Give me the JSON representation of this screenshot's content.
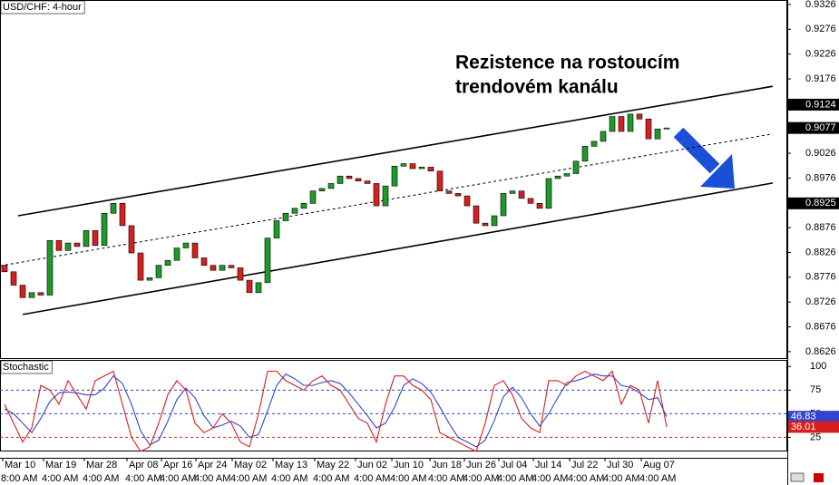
{
  "chart_data": [
    {
      "type": "candlestick",
      "title": "USD/CHF: 4-hour",
      "annotation": [
        "Rezistence na rostoucím",
        "trendovém kanálu"
      ],
      "open": [
        0.88,
        0.8787,
        0.876,
        0.8735,
        0.8745,
        0.874,
        0.885,
        0.883,
        0.8845,
        0.8838,
        0.887,
        0.884,
        0.8905,
        0.8925,
        0.888,
        0.8825,
        0.877,
        0.8775,
        0.88,
        0.881,
        0.8835,
        0.8845,
        0.8815,
        0.88,
        0.879,
        0.88,
        0.8795,
        0.877,
        0.8745,
        0.8765,
        0.8855,
        0.889,
        0.8905,
        0.8915,
        0.8925,
        0.895,
        0.8955,
        0.8965,
        0.898,
        0.8975,
        0.897,
        0.8965,
        0.892,
        0.896,
        0.9,
        0.9005,
        0.8995,
        0.8998,
        0.899,
        0.895,
        0.8945,
        0.894,
        0.892,
        0.8885,
        0.888,
        0.89,
        0.8945,
        0.895,
        0.8935,
        0.8925,
        0.8915,
        0.8975,
        0.898,
        0.8985,
        0.901,
        0.904,
        0.905,
        0.907,
        0.91,
        0.907,
        0.9105,
        0.9095,
        0.9055,
        0.9075
      ],
      "close": [
        0.8787,
        0.876,
        0.8735,
        0.8745,
        0.874,
        0.885,
        0.883,
        0.8845,
        0.8838,
        0.887,
        0.884,
        0.8905,
        0.8925,
        0.888,
        0.8825,
        0.877,
        0.8775,
        0.88,
        0.881,
        0.8835,
        0.8845,
        0.8815,
        0.88,
        0.879,
        0.88,
        0.8795,
        0.877,
        0.8745,
        0.8765,
        0.8855,
        0.889,
        0.8905,
        0.8915,
        0.8925,
        0.895,
        0.8955,
        0.8965,
        0.898,
        0.8975,
        0.897,
        0.8965,
        0.892,
        0.896,
        0.9,
        0.9005,
        0.8995,
        0.8998,
        0.899,
        0.895,
        0.8945,
        0.894,
        0.892,
        0.8885,
        0.888,
        0.89,
        0.8945,
        0.895,
        0.8935,
        0.8925,
        0.8915,
        0.8975,
        0.898,
        0.8985,
        0.901,
        0.904,
        0.905,
        0.907,
        0.91,
        0.907,
        0.9105,
        0.9095,
        0.9055,
        0.9075,
        0.9077
      ],
      "up_color": "#1f9a2a",
      "down_color": "#d42020",
      "xlim": [
        -0.5,
        86.3
      ],
      "ylim": [
        0.8613,
        0.9335
      ],
      "yticks": [
        0.9326,
        0.9276,
        0.9226,
        0.9176,
        0.9026,
        0.8976,
        0.8876,
        0.8826,
        0.8776,
        0.8726,
        0.8676,
        0.8626
      ],
      "price_labels": [
        0.9124,
        0.8925
      ],
      "lines": [
        {
          "x": [
            1.5,
            84.7
          ],
          "y": [
            0.89,
            0.9161
          ],
          "style": "solid"
        },
        {
          "x": [
            2.0,
            84.7
          ],
          "y": [
            0.8701,
            0.8966
          ],
          "style": "solid"
        },
        {
          "x": [
            -0.5,
            84.7
          ],
          "y": [
            0.8799,
            0.9065
          ],
          "style": "dashed"
        }
      ],
      "xticks": [
        {
          "value": -0.2,
          "label": "Mar 10"
        },
        {
          "value": 4.3,
          "label": "Mar 19"
        },
        {
          "value": 8.8,
          "label": "Mar 28"
        },
        {
          "value": 13.5,
          "label": "Apr 08"
        },
        {
          "value": 17.3,
          "label": "Apr 16"
        },
        {
          "value": 21.1,
          "label": "Apr 24"
        },
        {
          "value": 25.1,
          "label": "May 02"
        },
        {
          "value": 29.6,
          "label": "May 13"
        },
        {
          "value": 34.2,
          "label": "May 22"
        },
        {
          "value": 38.7,
          "label": "Jun 02"
        },
        {
          "value": 42.7,
          "label": "Jun 10"
        },
        {
          "value": 46.9,
          "label": "Jun 18"
        },
        {
          "value": 50.7,
          "label": "Jun 26"
        },
        {
          "value": 54.5,
          "label": "Jul 04"
        },
        {
          "value": 58.3,
          "label": "Jul 14"
        },
        {
          "value": 62.3,
          "label": "Jul 22"
        },
        {
          "value": 66.2,
          "label": "Jul 30"
        },
        {
          "value": 70.2,
          "label": "Aug 07"
        }
      ],
      "xtick_times": [
        "8:00 AM",
        "4:00 AM",
        "4:00 AM",
        "4:00 AM",
        "4:00 AM",
        "4:00 AM",
        "4:00 AM",
        "4:00 AM",
        "4:00 AM",
        "4:00 AM",
        "4:00 AM",
        "4:00 AM",
        "4:00 AM",
        "4:00 AM",
        "4:00 AM",
        "4:00 AM",
        "4:00 AM",
        "4:00 AM"
      ]
    },
    {
      "type": "line",
      "title": "Stochastic",
      "xlim": [
        -0.5,
        86.3
      ],
      "ylim": [
        11,
        107
      ],
      "yticks": [
        100,
        75,
        50,
        25
      ],
      "levels": [
        75,
        50,
        25
      ],
      "level_colors": [
        "#3344cc",
        "#3344cc",
        "#d42020"
      ],
      "series": [
        {
          "color": "#3344cc",
          "values": [
            55,
            50,
            40,
            30,
            45,
            63,
            72,
            73,
            72,
            70,
            70,
            77,
            90,
            82,
            60,
            32,
            17,
            22,
            42,
            65,
            77,
            67,
            48,
            35,
            38,
            42,
            37,
            25,
            28,
            53,
            80,
            92,
            87,
            80,
            80,
            83,
            85,
            82,
            72,
            60,
            48,
            35,
            40,
            57,
            80,
            87,
            82,
            73,
            57,
            40,
            25,
            20,
            15,
            22,
            43,
            68,
            78,
            67,
            50,
            37,
            50,
            67,
            83,
            85,
            88,
            92,
            90,
            90,
            80,
            78,
            72,
            65,
            67,
            46.83
          ]
        },
        {
          "color": "#d42020",
          "values": [
            60,
            40,
            20,
            35,
            80,
            75,
            60,
            85,
            70,
            55,
            85,
            90,
            95,
            60,
            25,
            10,
            15,
            40,
            70,
            85,
            75,
            40,
            30,
            35,
            50,
            40,
            20,
            15,
            50,
            95,
            95,
            85,
            80,
            75,
            85,
            90,
            80,
            75,
            60,
            45,
            40,
            20,
            60,
            90,
            90,
            80,
            75,
            65,
            30,
            25,
            20,
            15,
            10,
            40,
            80,
            85,
            70,
            45,
            35,
            30,
            85,
            85,
            80,
            90,
            95,
            90,
            85,
            95,
            60,
            80,
            75,
            40,
            85,
            36.01
          ]
        }
      ]
    }
  ]
}
